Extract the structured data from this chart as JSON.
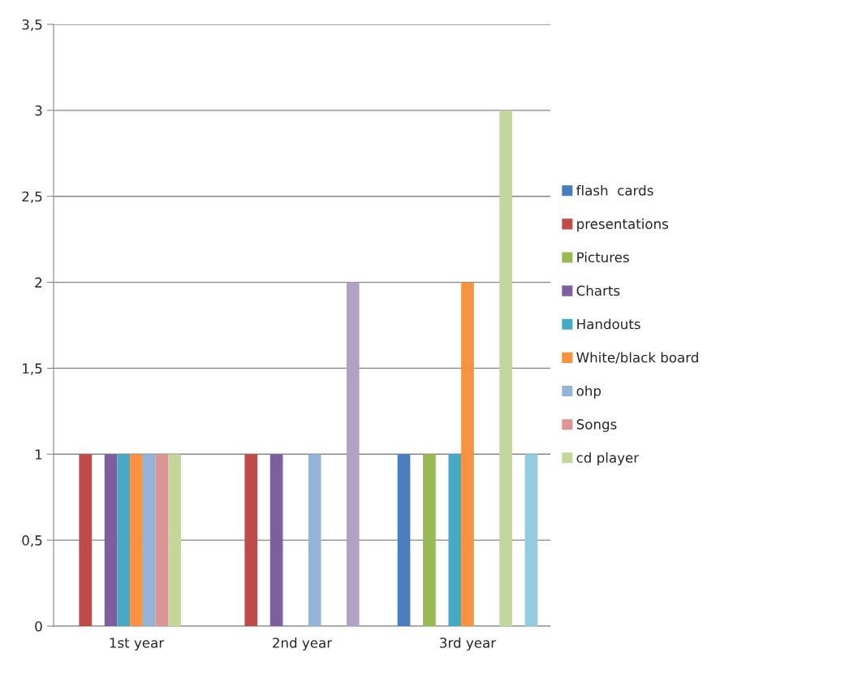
{
  "chart_data": {
    "type": "bar",
    "categories": [
      "1st year",
      "2nd year",
      "3rd year"
    ],
    "series": [
      {
        "name": "flash  cards",
        "color": "#4a7ebb",
        "values": [
          null,
          null,
          1
        ]
      },
      {
        "name": "presentations",
        "color": "#be4b48",
        "values": [
          1,
          1,
          null
        ]
      },
      {
        "name": "Pictures",
        "color": "#98b954",
        "values": [
          null,
          null,
          1
        ]
      },
      {
        "name": "Charts",
        "color": "#7d5fa0",
        "values": [
          1,
          1,
          null
        ]
      },
      {
        "name": "Handouts",
        "color": "#46aac5",
        "values": [
          1,
          null,
          1
        ]
      },
      {
        "name": "White/black board",
        "color": "#f69240",
        "values": [
          1,
          null,
          2
        ]
      },
      {
        "name": "ohp",
        "color": "#95b3d7",
        "values": [
          1,
          1,
          null
        ]
      },
      {
        "name": "Songs",
        "color": "#d99694",
        "values": [
          1,
          null,
          null
        ]
      },
      {
        "name": "cd player",
        "color": "#c3d69b",
        "values": [
          1,
          null,
          3
        ]
      },
      {
        "color": "#b2a1c7",
        "values": [
          null,
          2,
          null
        ]
      },
      {
        "color": "#93cddd",
        "values": [
          null,
          null,
          1
        ]
      }
    ],
    "ylim": [
      0,
      3.5
    ],
    "yticks": [
      0,
      {
        "value": 0.5,
        "label": "0,5"
      },
      1,
      {
        "value": 1.5,
        "label": "1,5"
      },
      2,
      {
        "value": 2.5,
        "label": "2,5"
      },
      3,
      {
        "value": 3.5,
        "label": "3,5"
      }
    ],
    "grid": "y",
    "legend": "right"
  }
}
